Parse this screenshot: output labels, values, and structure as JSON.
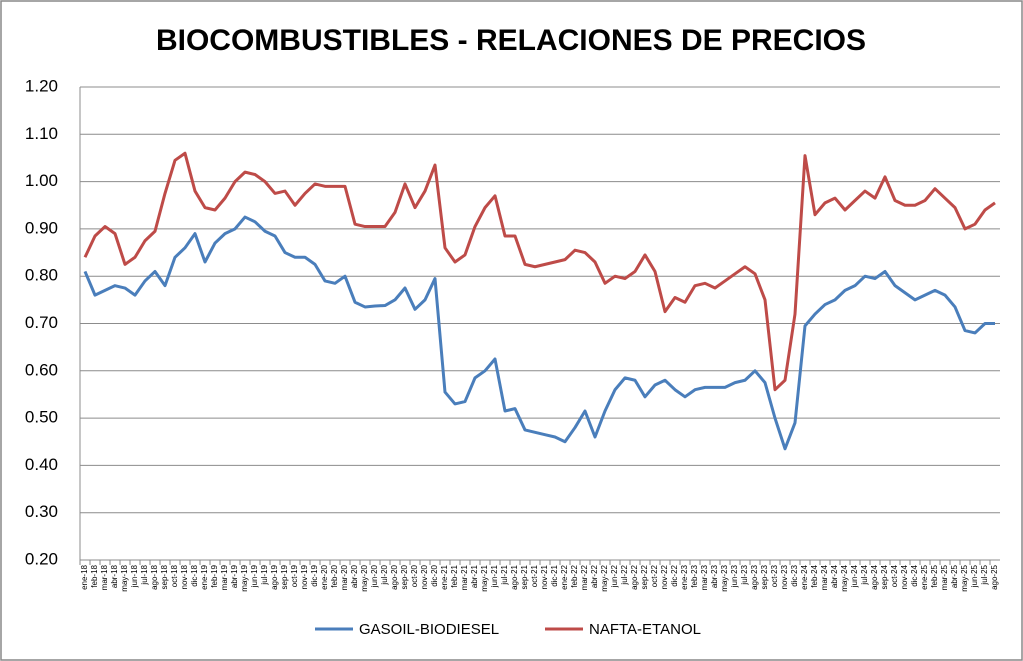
{
  "chart_data": {
    "type": "line",
    "title": "BIOCOMBUSTIBLES - RELACIONES DE PRECIOS",
    "categories": [
      "ene-18",
      "feb-18",
      "mar-18",
      "abr-18",
      "may-18",
      "jun-18",
      "jul-18",
      "ago-18",
      "sep-18",
      "oct-18",
      "nov-18",
      "dic-18",
      "ene-19",
      "feb-19",
      "mar-19",
      "abr-19",
      "may-19",
      "jun-19",
      "jul-19",
      "ago-19",
      "sep-19",
      "oct-19",
      "nov-19",
      "dic-19",
      "ene-20",
      "feb-20",
      "mar-20",
      "abr-20",
      "may-20",
      "jun-20",
      "jul-20",
      "ago-20",
      "sep-20",
      "oct-20",
      "nov-20",
      "dic-20",
      "ene-21",
      "feb-21",
      "mar-21",
      "abr-21",
      "may-21",
      "jun-21",
      "jul-21",
      "ago-21",
      "sep-21",
      "oct-21",
      "nov-21",
      "dic-21",
      "ene-22",
      "feb-22",
      "mar-22",
      "abr-22",
      "may-22",
      "jun-22",
      "jul-22",
      "ago-22",
      "sep-22",
      "oct-22",
      "nov-22",
      "dic-22",
      "ene-23",
      "feb-23",
      "mar-23",
      "abr-23",
      "may-23",
      "jun-23",
      "jul-23",
      "ago-23",
      "sep-23",
      "oct-23",
      "nov-23",
      "dic-23",
      "ene-24",
      "feb-24",
      "mar-24",
      "abr-24",
      "may-24",
      "jun-24",
      "jul-24",
      "ago-24",
      "sep-24",
      "oct-24",
      "nov-24",
      "dic-24",
      "ene-25",
      "feb-25",
      "mar-25",
      "abr-25",
      "may-25",
      "jun-25",
      "jul-25",
      "ago-25"
    ],
    "series": [
      {
        "name": "GASOIL-BIODIESEL",
        "color": "#4a7ebb",
        "values": [
          0.81,
          0.76,
          0.77,
          0.78,
          0.775,
          0.76,
          0.79,
          0.81,
          0.78,
          0.84,
          0.86,
          0.89,
          0.83,
          0.87,
          0.89,
          0.9,
          0.925,
          0.915,
          0.895,
          0.885,
          0.85,
          0.84,
          0.84,
          0.825,
          0.79,
          0.785,
          0.8,
          0.745,
          0.735,
          0.737,
          0.738,
          0.75,
          0.775,
          0.73,
          0.75,
          0.795,
          0.555,
          0.53,
          0.535,
          0.585,
          0.6,
          0.625,
          0.515,
          0.52,
          0.475,
          0.47,
          0.465,
          0.46,
          0.45,
          0.48,
          0.515,
          0.46,
          0.515,
          0.56,
          0.585,
          0.58,
          0.545,
          0.57,
          0.58,
          0.56,
          0.545,
          0.56,
          0.565,
          0.565,
          0.565,
          0.575,
          0.58,
          0.6,
          0.575,
          0.5,
          0.435,
          0.49,
          0.695,
          0.72,
          0.74,
          0.75,
          0.77,
          0.78,
          0.8,
          0.795,
          0.81,
          0.78,
          0.765,
          0.75,
          0.76,
          0.77,
          0.76,
          0.735,
          0.685,
          0.68,
          0.7,
          0.7
        ]
      },
      {
        "name": "NAFTA-ETANOL",
        "color": "#be4b48",
        "values": [
          0.84,
          0.885,
          0.905,
          0.89,
          0.825,
          0.84,
          0.875,
          0.895,
          0.975,
          1.045,
          1.06,
          0.98,
          0.945,
          0.94,
          0.965,
          1.0,
          1.02,
          1.015,
          1.0,
          0.975,
          0.98,
          0.95,
          0.975,
          0.995,
          0.99,
          0.99,
          0.99,
          0.91,
          0.905,
          0.905,
          0.905,
          0.935,
          0.995,
          0.945,
          0.98,
          1.035,
          0.86,
          0.83,
          0.845,
          0.905,
          0.945,
          0.97,
          0.885,
          0.885,
          0.825,
          0.82,
          0.825,
          0.83,
          0.835,
          0.855,
          0.85,
          0.83,
          0.785,
          0.8,
          0.795,
          0.81,
          0.845,
          0.81,
          0.725,
          0.755,
          0.745,
          0.78,
          0.785,
          0.775,
          0.79,
          0.805,
          0.82,
          0.805,
          0.75,
          0.56,
          0.58,
          0.72,
          1.055,
          0.93,
          0.955,
          0.965,
          0.94,
          0.96,
          0.98,
          0.965,
          1.01,
          0.96,
          0.95,
          0.95,
          0.96,
          0.985,
          0.965,
          0.945,
          0.9,
          0.91,
          0.94,
          0.955
        ]
      }
    ],
    "ylim": [
      0.2,
      1.2
    ],
    "yticks": [
      {
        "value": 0.2,
        "label": "0.20"
      },
      {
        "value": 0.3,
        "label": "0.30"
      },
      {
        "value": 0.4,
        "label": "0.40"
      },
      {
        "value": 0.5,
        "label": "0.50"
      },
      {
        "value": 0.6,
        "label": "0.60"
      },
      {
        "value": 0.7,
        "label": "0.70"
      },
      {
        "value": 0.8,
        "label": "0.80"
      },
      {
        "value": 0.9,
        "label": "0.90"
      },
      {
        "value": 1.0,
        "label": "1.00"
      },
      {
        "value": 1.1,
        "label": "1.10"
      },
      {
        "value": 1.2,
        "label": "1.20"
      }
    ],
    "grid": true,
    "legend": "bottom"
  }
}
